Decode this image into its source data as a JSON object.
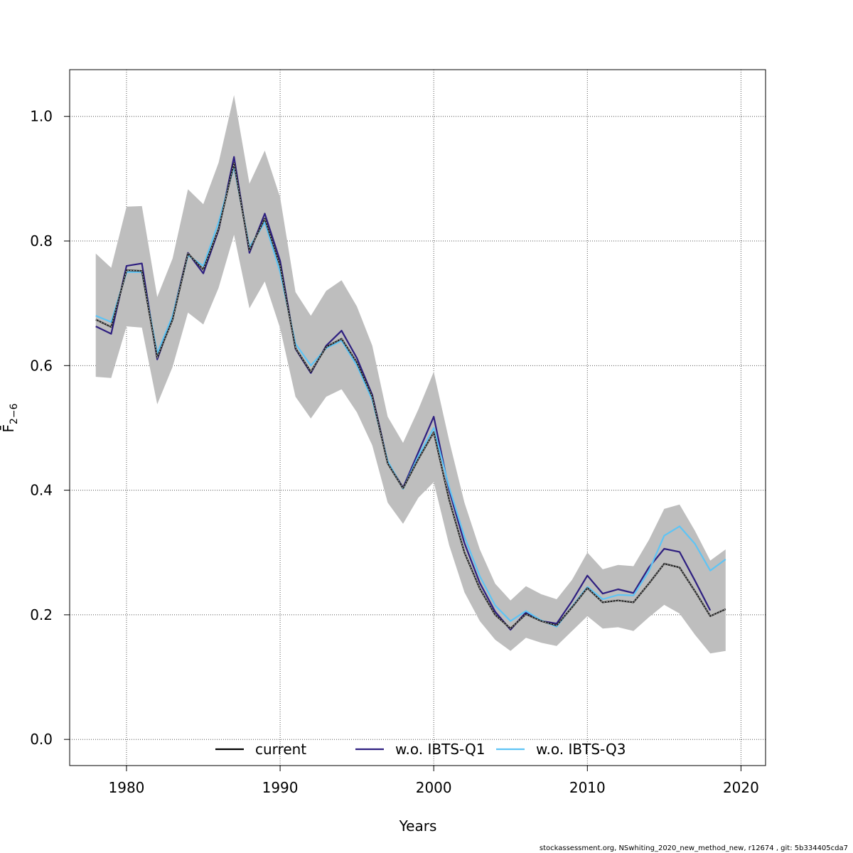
{
  "chart_data": {
    "type": "line",
    "xlabel": "Years",
    "ylabel": "F̄",
    "ylabel_subscript": "2−6",
    "xlim": [
      1976.3,
      2021.6
    ],
    "ylim": [
      -0.042,
      1.075
    ],
    "x_ticks": [
      1980,
      1990,
      2000,
      2010,
      2020
    ],
    "x_tick_labels": [
      "1980",
      "1990",
      "2000",
      "2010",
      "2020"
    ],
    "y_ticks": [
      0.0,
      0.2,
      0.4,
      0.6,
      0.8,
      1.0
    ],
    "y_tick_labels": [
      "0.0",
      "0.2",
      "0.4",
      "0.6",
      "0.8",
      "1.0"
    ],
    "grid": true,
    "legend_position": "bottom",
    "colors": {
      "band": "#bebebe",
      "current": "#000000",
      "q1": "#2e1f80",
      "q3": "#5ec4f5"
    },
    "x": [
      1978,
      1979,
      1980,
      1981,
      1982,
      1983,
      1984,
      1985,
      1986,
      1987,
      1988,
      1989,
      1990,
      1991,
      1992,
      1993,
      1994,
      1995,
      1996,
      1997,
      1998,
      1999,
      2000,
      2001,
      2002,
      2003,
      2004,
      2005,
      2006,
      2007,
      2008,
      2009,
      2010,
      2011,
      2012,
      2013,
      2014,
      2015,
      2016,
      2017,
      2018,
      2019
    ],
    "band_upper": [
      0.78,
      0.757,
      0.855,
      0.856,
      0.71,
      0.772,
      0.883,
      0.859,
      0.926,
      1.034,
      0.892,
      0.945,
      0.87,
      0.718,
      0.68,
      0.72,
      0.737,
      0.695,
      0.632,
      0.518,
      0.476,
      0.53,
      0.59,
      0.48,
      0.38,
      0.305,
      0.25,
      0.223,
      0.246,
      0.233,
      0.225,
      0.256,
      0.3,
      0.273,
      0.28,
      0.278,
      0.32,
      0.37,
      0.377,
      0.335,
      0.287,
      0.305
    ],
    "band_lower": [
      0.582,
      0.58,
      0.663,
      0.661,
      0.538,
      0.598,
      0.685,
      0.666,
      0.725,
      0.81,
      0.692,
      0.735,
      0.66,
      0.55,
      0.515,
      0.55,
      0.562,
      0.525,
      0.472,
      0.38,
      0.346,
      0.388,
      0.413,
      0.312,
      0.236,
      0.19,
      0.16,
      0.142,
      0.163,
      0.155,
      0.15,
      0.174,
      0.198,
      0.178,
      0.18,
      0.174,
      0.196,
      0.216,
      0.202,
      0.168,
      0.138,
      0.142
    ],
    "series": [
      {
        "name": "current",
        "values": [
          0.674,
          0.662,
          0.753,
          0.752,
          0.613,
          0.674,
          0.78,
          0.754,
          0.82,
          0.925,
          0.785,
          0.836,
          0.76,
          0.628,
          0.59,
          0.63,
          0.643,
          0.605,
          0.55,
          0.443,
          0.403,
          0.45,
          0.493,
          0.385,
          0.3,
          0.242,
          0.2,
          0.178,
          0.201,
          0.19,
          0.183,
          0.212,
          0.243,
          0.22,
          0.223,
          0.22,
          0.25,
          0.282,
          0.276,
          0.238,
          0.198,
          0.209
        ]
      },
      {
        "name": "w.o. IBTS-Q1",
        "values": [
          0.663,
          0.651,
          0.76,
          0.764,
          0.61,
          0.679,
          0.781,
          0.748,
          0.818,
          0.935,
          0.781,
          0.844,
          0.768,
          0.627,
          0.588,
          0.632,
          0.656,
          0.612,
          0.553,
          0.445,
          0.404,
          0.461,
          0.518,
          0.4,
          0.315,
          0.251,
          0.205,
          0.176,
          0.204,
          0.19,
          0.186,
          0.222,
          0.263,
          0.234,
          0.241,
          0.235,
          0.276,
          0.306,
          0.301,
          0.255,
          0.207,
          null
        ]
      },
      {
        "name": "w.o. IBTS-Q3",
        "values": [
          0.68,
          0.67,
          0.75,
          0.75,
          0.62,
          0.68,
          0.777,
          0.76,
          0.83,
          0.92,
          0.79,
          0.83,
          0.75,
          0.635,
          0.6,
          0.628,
          0.64,
          0.6,
          0.545,
          0.447,
          0.402,
          0.455,
          0.5,
          0.405,
          0.325,
          0.262,
          0.215,
          0.19,
          0.206,
          0.191,
          0.181,
          0.213,
          0.245,
          0.225,
          0.232,
          0.231,
          0.27,
          0.327,
          0.342,
          0.314,
          0.271,
          0.289
        ]
      }
    ]
  },
  "footer": {
    "text": "stockassessment.org, NSwhiting_2020_new_method_new, r12674 , git: 5b334405cda7"
  }
}
